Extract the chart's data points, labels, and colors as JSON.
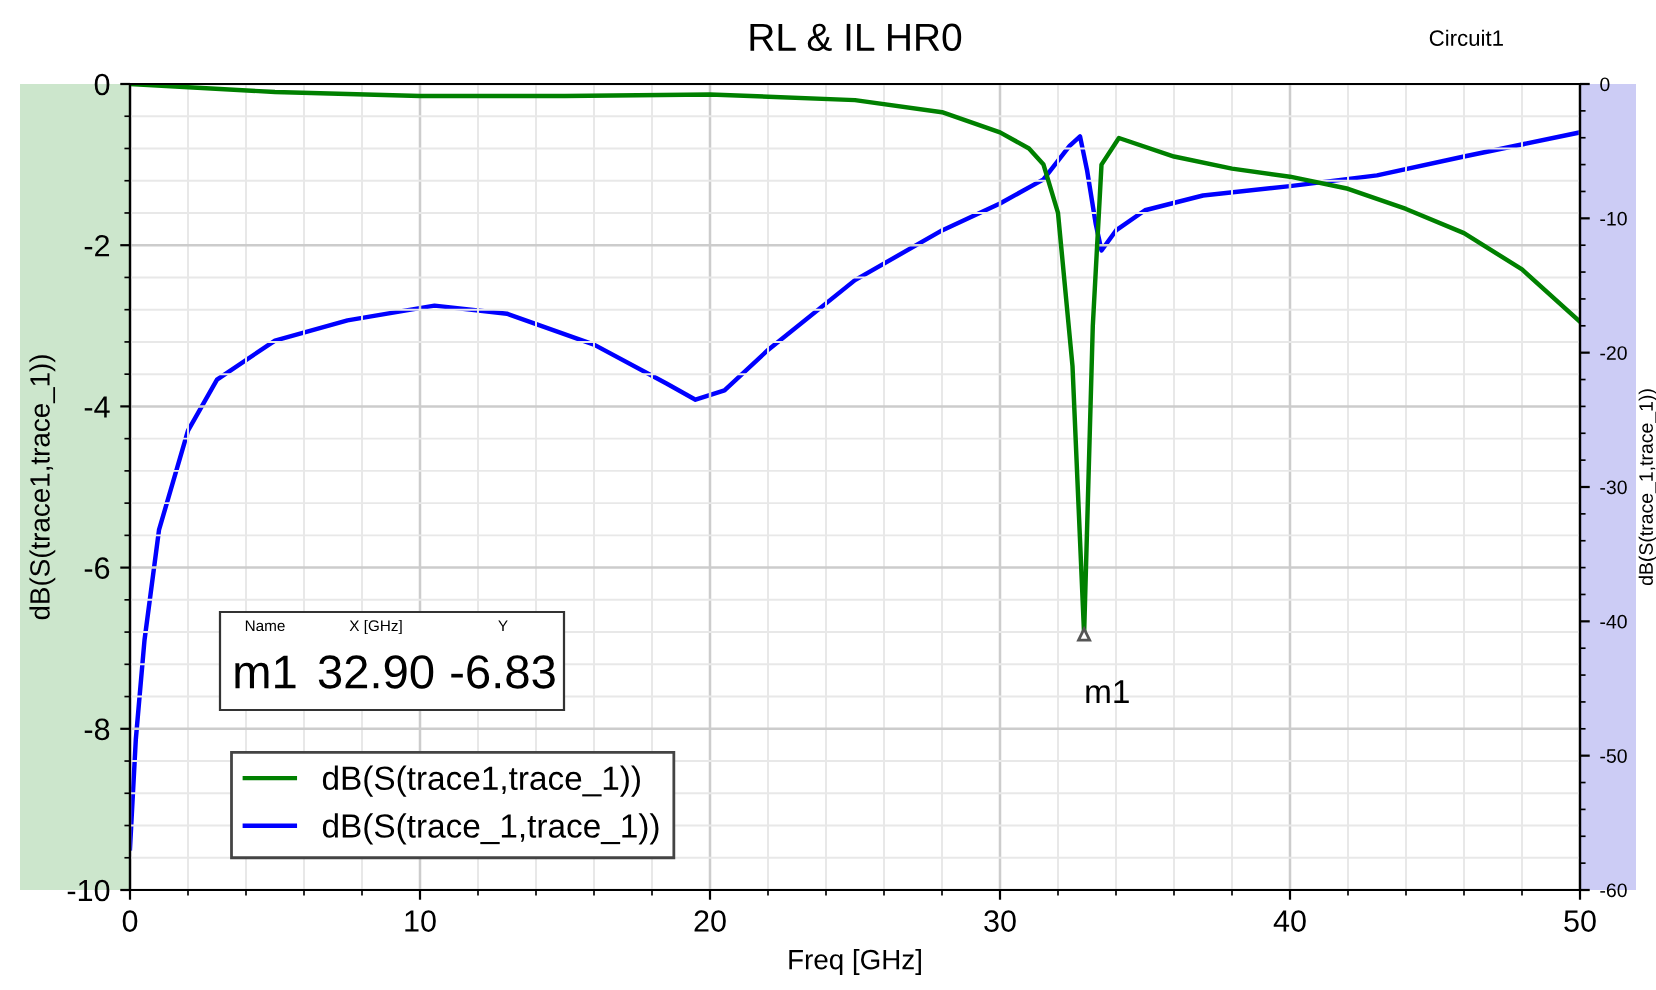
{
  "chart_data": {
    "type": "line",
    "title": "RL & IL HR0",
    "xlabel": "Freq [GHz]",
    "ylabel": "dB(S(trace1,trace_1))",
    "y2label": "dB(S(trace_1,trace_1))",
    "xlim": [
      0,
      50
    ],
    "xticks": [
      0,
      10,
      20,
      30,
      40,
      50
    ],
    "ylim": [
      -10,
      0
    ],
    "yticks": [
      -10,
      -8,
      -6,
      -4,
      -2,
      0
    ],
    "y2lim": [
      -60,
      0
    ],
    "y2ticks": [
      -60,
      -50,
      -40,
      -30,
      -20,
      -10,
      0
    ],
    "grid": true,
    "legend": "bottom left",
    "line_style": "solid",
    "marker": "none",
    "series": [
      {
        "name": "dB(S(trace1,trace_1))",
        "color": "#008000",
        "x": [
          0,
          5,
          10,
          15,
          20,
          25,
          28,
          30,
          31,
          31.5,
          32,
          32.5,
          32.9,
          33.2,
          33.5,
          34.1,
          36,
          38,
          40,
          42,
          44,
          46,
          48,
          50
        ],
        "values": [
          0,
          -0.1,
          -0.15,
          -0.15,
          -0.13,
          -0.2,
          -0.35,
          -0.6,
          -0.8,
          -1.0,
          -1.6,
          -3.5,
          -6.83,
          -3.0,
          -1.0,
          -0.67,
          -0.9,
          -1.05,
          -1.15,
          -1.3,
          -1.55,
          -1.85,
          -2.3,
          -2.95
        ]
      },
      {
        "name": "dB(S(trace_1,trace_1))",
        "color": "#0000ff",
        "axis": "y2",
        "x": [
          0,
          0.2,
          0.5,
          1,
          2,
          3,
          5,
          7.5,
          10.5,
          13,
          16,
          18.5,
          19.5,
          20.5,
          22,
          25,
          28,
          30,
          31.5,
          32.4,
          32.76,
          33,
          33.3,
          33.5,
          34,
          35,
          37,
          40,
          43,
          46,
          50
        ],
        "values": [
          -56.9,
          -48.8,
          -41.4,
          -33.2,
          -25.8,
          -22,
          -19.1,
          -17.6,
          -16.5,
          -17.1,
          -19.4,
          -22.3,
          -23.5,
          -22.8,
          -19.8,
          -14.6,
          -10.9,
          -8.9,
          -7.1,
          -4.6,
          -3.9,
          -6.4,
          -10.4,
          -12.4,
          -10.9,
          -9.4,
          -8.3,
          -7.6,
          -6.8,
          -5.4,
          -3.6
        ]
      }
    ],
    "annotations": [
      {
        "text": "m1",
        "x": 32.9,
        "y": -6.83
      },
      "Name",
      "X [GHz]",
      "Y",
      "m1",
      "32.90",
      "-6.83",
      "Circuit1"
    ]
  }
}
